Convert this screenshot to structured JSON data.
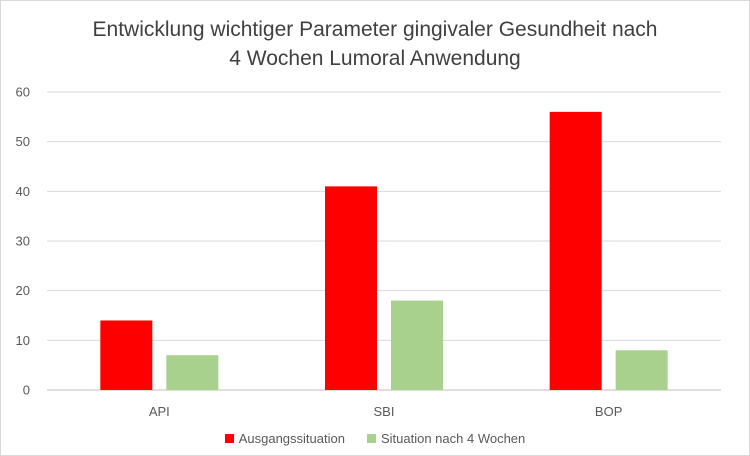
{
  "chart_data": {
    "type": "bar",
    "title_lines": [
      "Entwicklung wichtiger Parameter gingivaler Gesundheit nach",
      "4 Wochen Lumoral Anwendung"
    ],
    "categories": [
      "API",
      "SBI",
      "BOP"
    ],
    "series": [
      {
        "name": "Ausgangssituation",
        "color": "#ff0000",
        "values": [
          14,
          41,
          56
        ]
      },
      {
        "name": "Situation nach 4 Wochen",
        "color": "#a9d18e",
        "values": [
          7,
          18,
          8
        ]
      }
    ],
    "ylim": [
      0,
      60
    ],
    "yticks": [
      0,
      10,
      20,
      30,
      40,
      50,
      60
    ],
    "grid": true,
    "legend_position": "bottom"
  }
}
